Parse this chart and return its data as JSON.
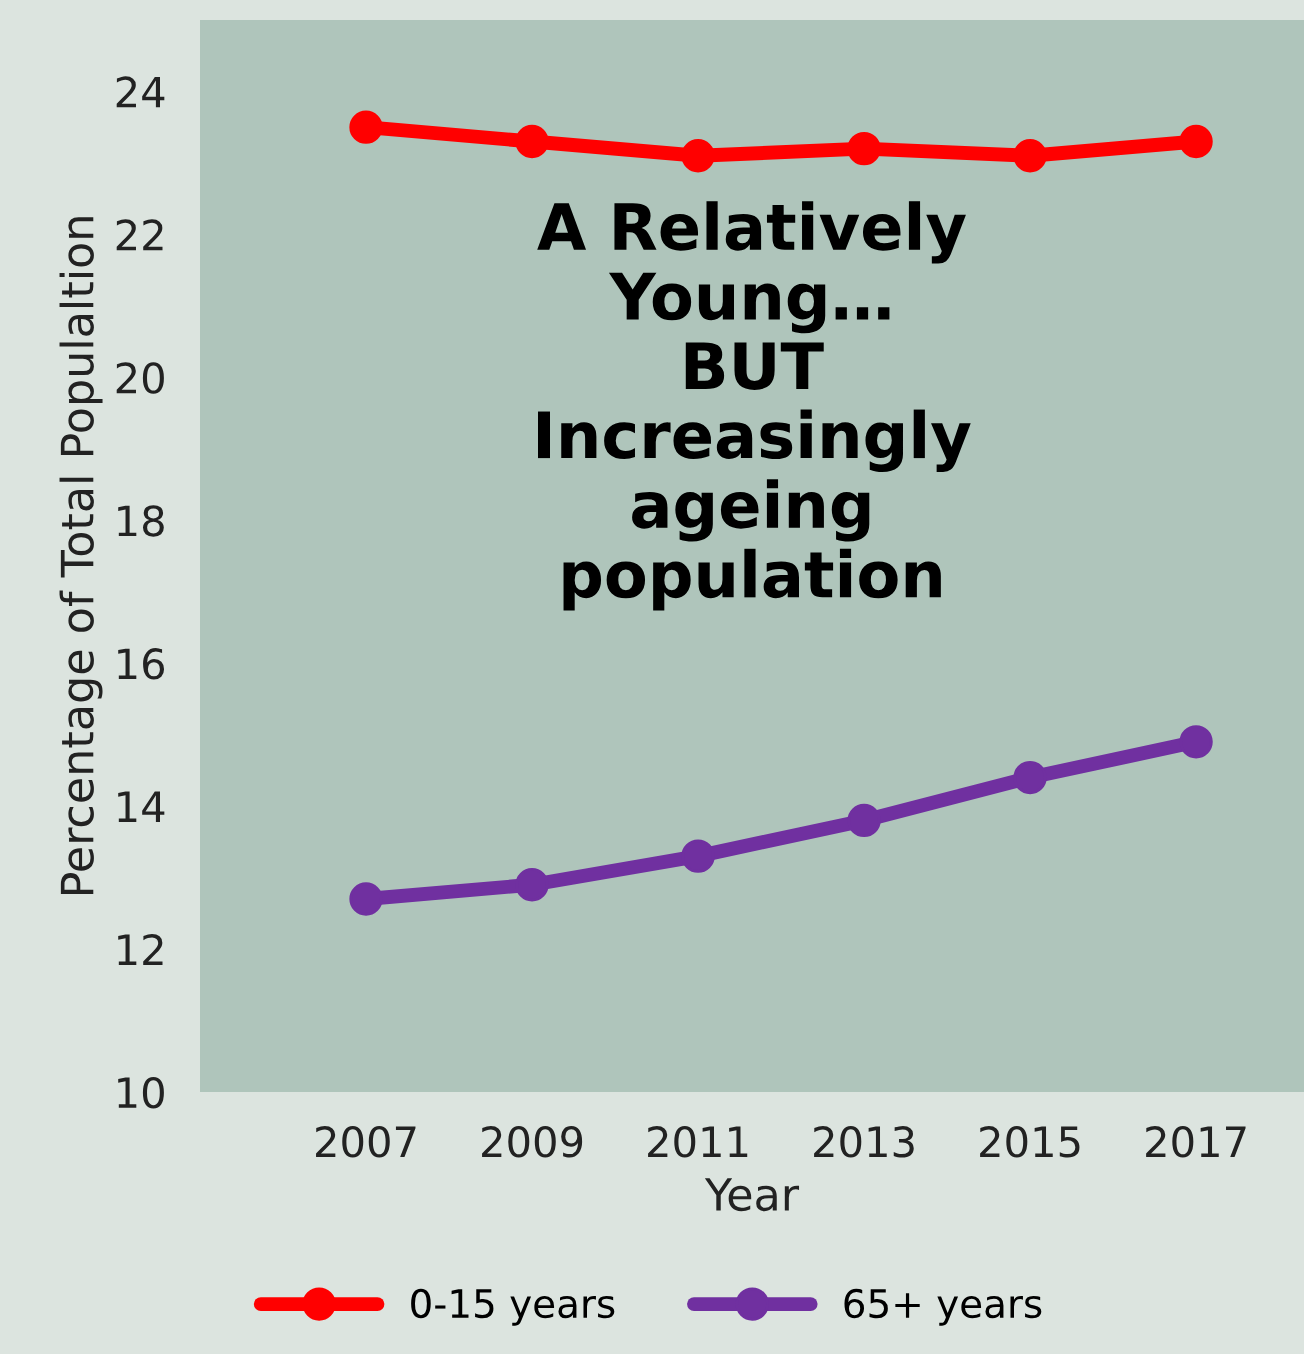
{
  "chart_data": {
    "type": "line",
    "xlabel": "Year",
    "ylabel": "Percentage of Total Populaltion",
    "categories": [
      "2007",
      "2009",
      "2011",
      "2013",
      "2015",
      "2017"
    ],
    "series": [
      {
        "name": "0-15 years",
        "color": "#ff0000",
        "values": [
          23.5,
          23.3,
          23.1,
          23.2,
          23.1,
          23.3
        ]
      },
      {
        "name": "65+ years",
        "color": "#7030a0",
        "values": [
          12.7,
          12.9,
          13.3,
          13.8,
          14.4,
          14.9
        ]
      }
    ],
    "ylim": [
      10,
      25
    ],
    "yticks": [
      10,
      12,
      14,
      16,
      18,
      20,
      22,
      24
    ],
    "annotations": [
      "A Relatively\nYoung…\nBUT\nIncreasingly\nageing\npopulation"
    ],
    "legend": "bottom",
    "marker": "circle",
    "line_style": "solid",
    "grid": false
  }
}
